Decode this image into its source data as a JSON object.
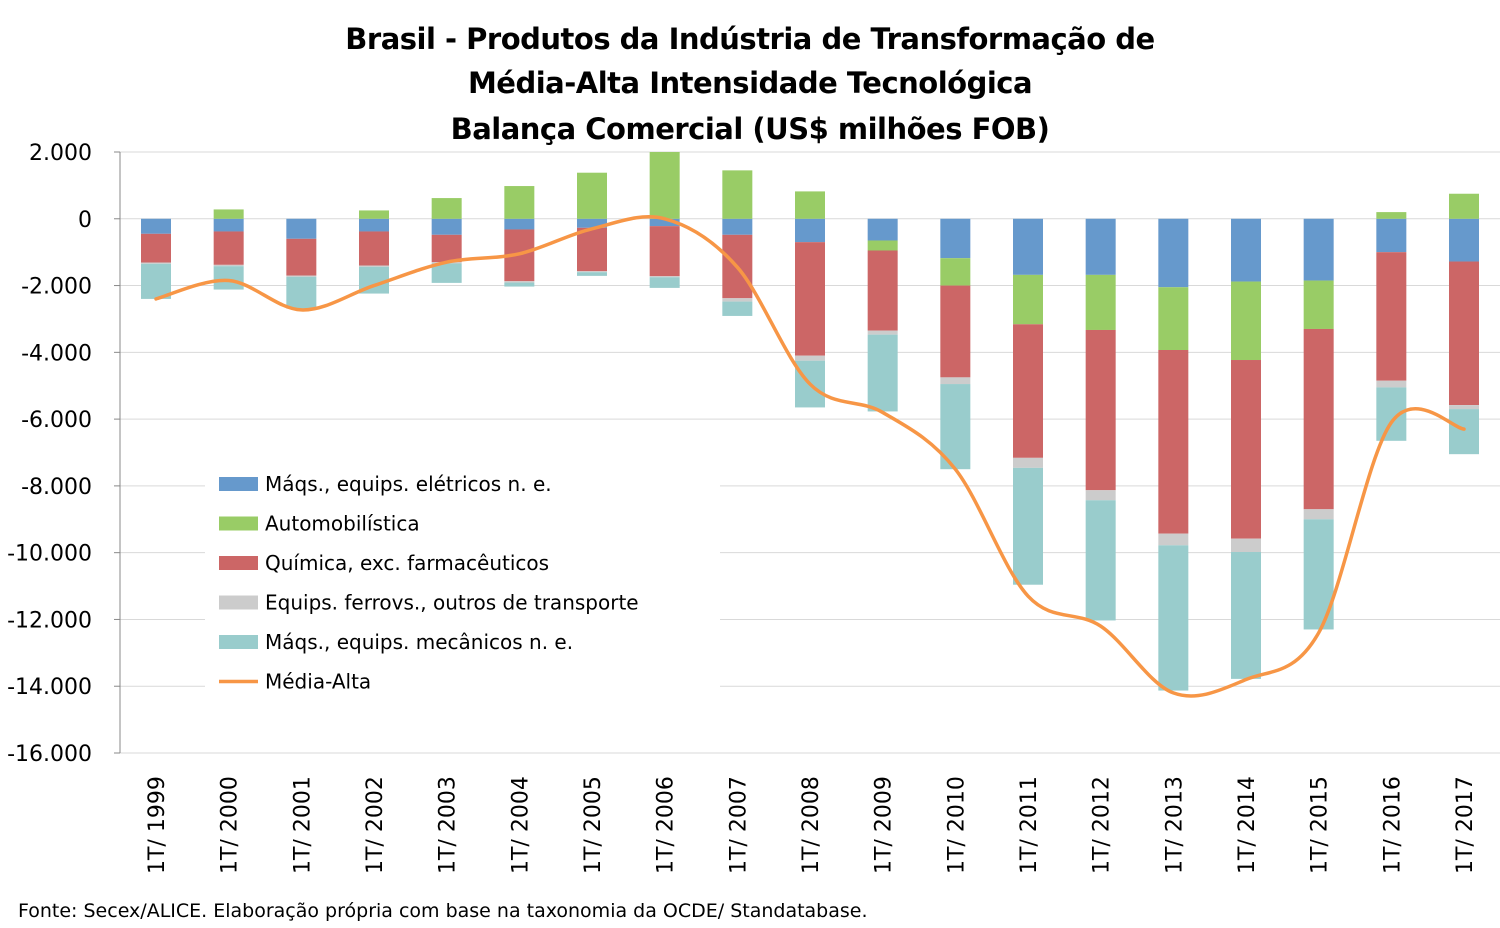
{
  "chart_data": {
    "type": "bar",
    "stacked": true,
    "title": [
      "Brasil - Produtos da Indústria de Transformação de",
      "Média-Alta Intensidade Tecnológica",
      "Balança Comercial (US$ milhões FOB)"
    ],
    "categories": [
      "1T/ 1999",
      "1T/ 2000",
      "1T/ 2001",
      "1T/ 2002",
      "1T/ 2003",
      "1T/ 2004",
      "1T/ 2005",
      "1T/ 2006",
      "1T/ 2007",
      "1T/ 2008",
      "1T/ 2009",
      "1T/ 2010",
      "1T/ 2011",
      "1T/ 2012",
      "1T/ 2013",
      "1T/ 2014",
      "1T/ 2015",
      "1T/ 2016",
      "1T/ 2017"
    ],
    "ylim": [
      -16000,
      2000
    ],
    "yticks": [
      2000,
      0,
      -2000,
      -4000,
      -6000,
      -8000,
      -10000,
      -12000,
      -14000,
      -16000
    ],
    "ytick_labels": [
      "2.000",
      "0",
      "-2.000",
      "-4.000",
      "-6.000",
      "-8.000",
      "-10.000",
      "-12.000",
      "-14.000",
      "-16.000"
    ],
    "grid": true,
    "legend_position": "left-middle",
    "series": [
      {
        "name": "Máqs., equips. elétricos n. e.",
        "color": "#6699CC",
        "kind": "bar",
        "values": [
          -450,
          -380,
          -600,
          -380,
          -480,
          -320,
          -270,
          -220,
          -480,
          -700,
          -650,
          -1180,
          -1680,
          -1680,
          -2050,
          -1880,
          -1850,
          -1000,
          -1280
        ]
      },
      {
        "name": "Automobilística",
        "color": "#99CC66",
        "kind": "bar",
        "values": [
          0,
          280,
          0,
          250,
          620,
          980,
          1380,
          2000,
          1450,
          820,
          -300,
          -820,
          -1480,
          -1650,
          -1880,
          -2350,
          -1450,
          200,
          750
        ]
      },
      {
        "name": "Química, exc. farmacêuticos",
        "color": "#CC6666",
        "kind": "bar",
        "values": [
          -860,
          -1000,
          -1100,
          -1020,
          -820,
          -1550,
          -1300,
          -1500,
          -1900,
          -3400,
          -2400,
          -2750,
          -4000,
          -4800,
          -5500,
          -5350,
          -5400,
          -3850,
          -4300
        ]
      },
      {
        "name": "Equips. ferrovs., outros de transporte",
        "color": "#CCCCCC",
        "kind": "bar",
        "values": [
          -40,
          -40,
          -40,
          -40,
          -40,
          -40,
          -30,
          -30,
          -100,
          -150,
          -120,
          -200,
          -300,
          -300,
          -350,
          -400,
          -300,
          -200,
          -120
        ]
      },
      {
        "name": "Máqs., equips. mecânicos  n. e.",
        "color": "#99CCCC",
        "kind": "bar",
        "values": [
          -1050,
          -700,
          -950,
          -800,
          -580,
          -120,
          -110,
          -320,
          -430,
          -1400,
          -2300,
          -2550,
          -3500,
          -3600,
          -4350,
          -3800,
          -3300,
          -1600,
          -1350
        ]
      },
      {
        "name": "Média-Alta",
        "color": "#F79646",
        "kind": "line",
        "values": [
          -2400,
          -1850,
          -2730,
          -2000,
          -1300,
          -1050,
          -300,
          0,
          -1450,
          -4950,
          -5800,
          -7500,
          -11300,
          -12200,
          -14200,
          -13800,
          -12400,
          -6100,
          -6300
        ]
      }
    ]
  },
  "source": "Fonte: Secex/ALICE. Elaboração própria com base na taxonomia da OCDE/ Standatabase."
}
